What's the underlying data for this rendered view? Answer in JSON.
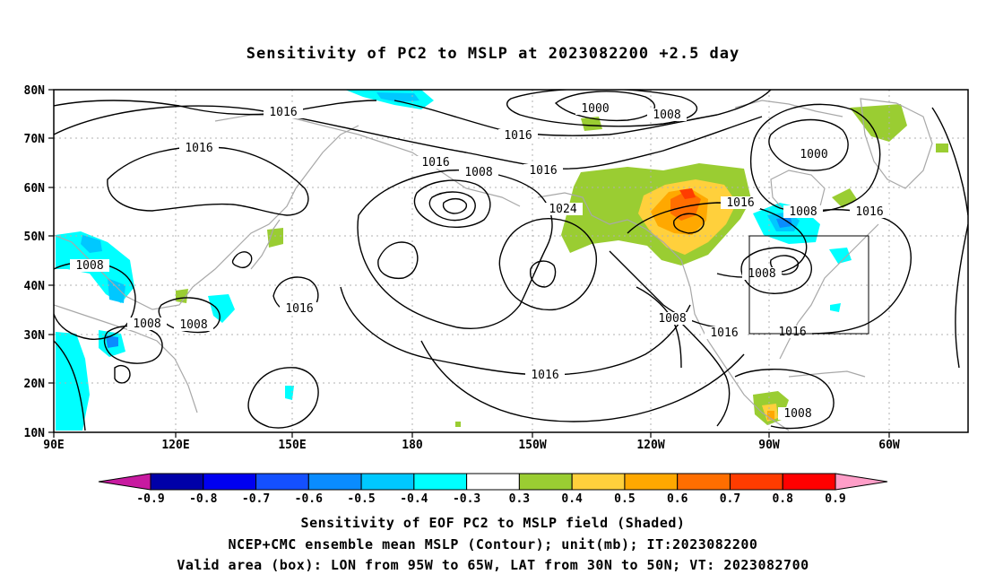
{
  "title": "Sensitivity of PC2 to MSLP at 2023082200 +2.5 day",
  "lat_labels": [
    "80N",
    "70N",
    "60N",
    "50N",
    "40N",
    "30N",
    "20N",
    "10N"
  ],
  "lon_labels": [
    "90E",
    "120E",
    "150E",
    "180",
    "150W",
    "120W",
    "90W",
    "60W"
  ],
  "contour_labels": {
    "c1016_a": "1016",
    "c1016_b": "1016",
    "c1016_c": "1016",
    "c1016_d": "1016",
    "c1016_e": "1016",
    "c1016_f": "1016",
    "c1016_g": "1016",
    "c1016_h": "1016",
    "c1016_i": "1016",
    "c1016_j": "1016",
    "c1016_k": "1016",
    "c1008_a": "1008",
    "c1008_b": "1008",
    "c1008_c": "1008",
    "c1008_d": "1008",
    "c1008_e": "1008",
    "c1008_f": "1008",
    "c1008_g": "1008",
    "c1008_h": "1008",
    "c1008_i": "1008",
    "c1000_a": "1000",
    "c1000_b": "1000",
    "c1024_a": "1024"
  },
  "colorbar": {
    "labels": [
      "-0.9",
      "-0.8",
      "-0.7",
      "-0.6",
      "-0.5",
      "-0.4",
      "-0.3",
      "0.3",
      "0.4",
      "0.5",
      "0.6",
      "0.7",
      "0.8",
      "0.9"
    ],
    "colors": [
      "#0000a8",
      "#0000f0",
      "#1450ff",
      "#0a8cff",
      "#00c8ff",
      "#00ffff",
      "#ffffff",
      "#9acd32",
      "#ffd03c",
      "#ffa800",
      "#ff6e00",
      "#ff3c00",
      "#ff0000"
    ],
    "left_arrow_color": "#c81aa0",
    "right_arrow_color": "#ff9ec8"
  },
  "valid_box": {
    "lon_west": "95W",
    "lon_east": "65W",
    "lat_south": "30N",
    "lat_north": "50N"
  },
  "captions": {
    "line1": "Sensitivity of EOF PC2 to MSLP field (Shaded)",
    "line2": "NCEP+CMC ensemble mean MSLP (Contour); unit(mb); IT:2023082200",
    "line3": "Valid area (box): LON from 95W to 65W, LAT from 30N to 50N; VT: 2023082700"
  }
}
